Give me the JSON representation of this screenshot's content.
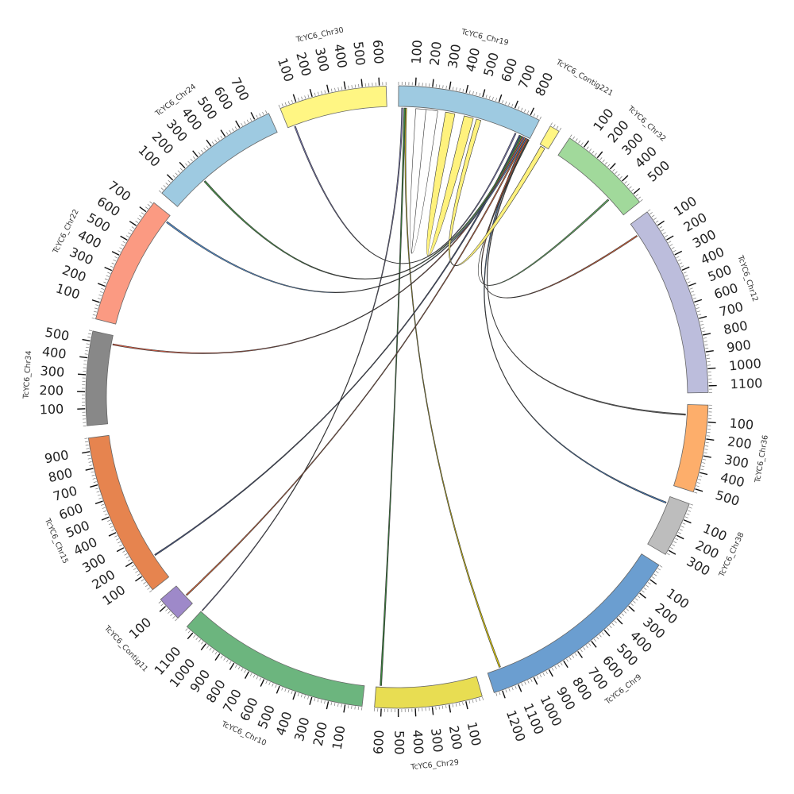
{
  "segments": [
    {
      "id": "chr19",
      "name": "TcYC6_Chr19",
      "length": 860,
      "color": "#9ecae1",
      "ticks": [
        100,
        200,
        300,
        400,
        500,
        600,
        700,
        800
      ]
    },
    {
      "id": "contig221",
      "name": "TcYC6_Contig221",
      "length": 60,
      "color": "#fff683",
      "ticks": []
    },
    {
      "id": "chr32",
      "name": "TcYC6_Chr32",
      "length": 560,
      "color": "#a1d99b",
      "ticks": [
        100,
        200,
        300,
        400,
        500
      ]
    },
    {
      "id": "chr12",
      "name": "TcYC6_Chr12",
      "length": 1140,
      "color": "#bcbddc",
      "ticks": [
        100,
        200,
        300,
        400,
        500,
        600,
        700,
        800,
        900,
        1000,
        1100
      ]
    },
    {
      "id": "chr36",
      "name": "TcYC6_Chr36",
      "length": 520,
      "color": "#fdae6b",
      "ticks": [
        100,
        200,
        300,
        400,
        500
      ]
    },
    {
      "id": "chr38",
      "name": "TcYC6_Chr38",
      "length": 330,
      "color": "#bdbdbd",
      "ticks": [
        100,
        200,
        300
      ]
    },
    {
      "id": "chr9",
      "name": "TcYC6_Chr9",
      "length": 1250,
      "color": "#6b9ed0",
      "ticks": [
        100,
        200,
        300,
        400,
        500,
        600,
        700,
        800,
        900,
        1000,
        1100,
        1200
      ]
    },
    {
      "id": "chr29",
      "name": "TcYC6_Chr29",
      "length": 640,
      "color": "#e8dd52",
      "ticks": [
        100,
        200,
        300,
        400,
        500,
        600
      ]
    },
    {
      "id": "chr10",
      "name": "TcYC6_Chr10",
      "length": 1150,
      "color": "#6cb57e",
      "ticks": [
        100,
        200,
        300,
        400,
        500,
        600,
        700,
        800,
        900,
        1000,
        1100
      ]
    },
    {
      "id": "contig11",
      "name": "TcYC6_Contig11",
      "length": 150,
      "color": "#9e89c9",
      "ticks": [
        100
      ]
    },
    {
      "id": "chr15",
      "name": "TcYC6_Chr15",
      "length": 980,
      "color": "#e6844f",
      "ticks": [
        100,
        200,
        300,
        400,
        500,
        600,
        700,
        800,
        900
      ]
    },
    {
      "id": "chr34",
      "name": "TcYC6_Chr34",
      "length": 560,
      "color": "#888888",
      "ticks": [
        100,
        200,
        300,
        400,
        500
      ]
    },
    {
      "id": "chr22",
      "name": "TcYC6_Chr22",
      "length": 770,
      "color": "#fb9a82",
      "ticks": [
        100,
        200,
        300,
        400,
        500,
        600,
        700
      ]
    },
    {
      "id": "chr24",
      "name": "TcYC6_Chr24",
      "length": 790,
      "color": "#9ecae1",
      "ticks": [
        100,
        200,
        300,
        400,
        500,
        600,
        700
      ]
    },
    {
      "id": "chr30",
      "name": "TcYC6_Chr30",
      "length": 640,
      "color": "#fff683",
      "ticks": [
        100,
        200,
        300,
        400,
        500,
        600
      ]
    }
  ],
  "links": [
    {
      "a": [
        "chr19",
        20,
        28
      ],
      "b": [
        "chr10",
        1145,
        1150
      ],
      "color": "#6f6fb0"
    },
    {
      "a": [
        "chr19",
        35,
        45
      ],
      "b": [
        "chr29",
        605,
        615
      ],
      "color": "#2e7d32"
    },
    {
      "a": [
        "chr19",
        45,
        52
      ],
      "b": [
        "chr9",
        1160,
        1170
      ],
      "color": "#d8c400"
    },
    {
      "a": [
        "chr19",
        110,
        175
      ],
      "b": [
        "chr19",
        175,
        250
      ],
      "color": "#ffffff"
    },
    {
      "a": [
        "chr19",
        300,
        360
      ],
      "b": [
        "chr19",
        420,
        480
      ],
      "color": "#fff176"
    },
    {
      "a": [
        "chr19",
        790,
        800
      ],
      "b": [
        "chr15",
        160,
        168
      ],
      "color": "#3a4a7a"
    },
    {
      "a": [
        "chr19",
        800,
        810
      ],
      "b": [
        "chr24",
        230,
        240
      ],
      "color": "#3f8f3f"
    },
    {
      "a": [
        "chr19",
        810,
        818
      ],
      "b": [
        "chr34",
        500,
        508
      ],
      "color": "#e0553a"
    },
    {
      "a": [
        "chr19",
        818,
        826
      ],
      "b": [
        "chr22",
        720,
        730
      ],
      "color": "#4a86c8"
    },
    {
      "a": [
        "chr19",
        826,
        834
      ],
      "b": [
        "contig11",
        60,
        68
      ],
      "color": "#e4622e"
    },
    {
      "a": [
        "chr19",
        834,
        842
      ],
      "b": [
        "chr38",
        40,
        48
      ],
      "color": "#3b78c2"
    },
    {
      "a": [
        "chr19",
        842,
        850
      ],
      "b": [
        "chr12",
        80,
        88
      ],
      "color": "#e25b2c"
    },
    {
      "a": [
        "chr19",
        850,
        856
      ],
      "b": [
        "chr36",
        60,
        68
      ],
      "color": "#555555"
    },
    {
      "a": [
        "chr19",
        856,
        860
      ],
      "b": [
        "chr32",
        420,
        430
      ],
      "color": "#5aa55a"
    },
    {
      "a": [
        "contig221",
        10,
        40
      ],
      "b": [
        "chr19",
        500,
        530
      ],
      "color": "#fff176"
    },
    {
      "a": [
        "chr30",
        40,
        48
      ],
      "b": [
        "chr19",
        760,
        768
      ],
      "color": "#6f6fb0"
    }
  ]
}
